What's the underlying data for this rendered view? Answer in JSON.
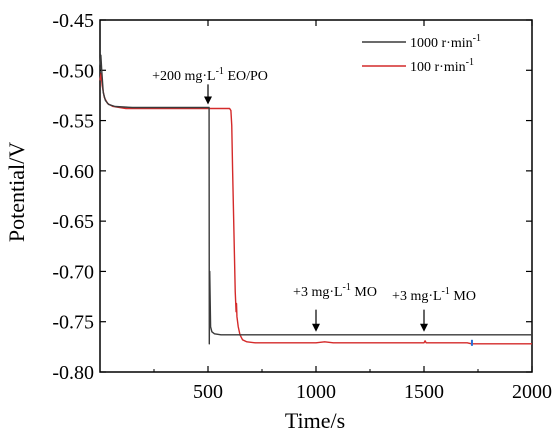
{
  "chart_data": {
    "type": "line",
    "xlabel": "Time/s",
    "ylabel": "Potential/V",
    "xlim": [
      0,
      2000
    ],
    "ylim": [
      -0.8,
      -0.45
    ],
    "x_ticks": [
      500,
      1000,
      1500,
      2000
    ],
    "x_tick_labels": [
      "500",
      "1000",
      "1500",
      "2000"
    ],
    "y_ticks": [
      -0.45,
      -0.5,
      -0.55,
      -0.6,
      -0.65,
      -0.7,
      -0.75,
      -0.8
    ],
    "y_tick_labels": [
      "-0.45",
      "-0.50",
      "-0.55",
      "-0.60",
      "-0.65",
      "-0.70",
      "-0.75",
      "-0.80"
    ],
    "grid": false,
    "legend_position": "top-right",
    "series": [
      {
        "name": "1000 r·min-1",
        "label": {
          "main": "1000 r·min",
          "sup": "-1"
        },
        "color": "#3a3a3a",
        "points": [
          [
            0,
            -0.495
          ],
          [
            4,
            -0.485
          ],
          [
            8,
            -0.5
          ],
          [
            15,
            -0.522
          ],
          [
            25,
            -0.53
          ],
          [
            40,
            -0.534
          ],
          [
            70,
            -0.536
          ],
          [
            150,
            -0.537
          ],
          [
            300,
            -0.537
          ],
          [
            450,
            -0.537
          ],
          [
            505,
            -0.537
          ],
          [
            506,
            -0.772
          ],
          [
            508,
            -0.7
          ],
          [
            512,
            -0.755
          ],
          [
            518,
            -0.76
          ],
          [
            530,
            -0.762
          ],
          [
            560,
            -0.763
          ],
          [
            800,
            -0.763
          ],
          [
            1200,
            -0.763
          ],
          [
            1600,
            -0.763
          ],
          [
            2000,
            -0.763
          ]
        ]
      },
      {
        "name": "100 r·min-1",
        "label": {
          "main": "100 r·min",
          "sup": "-1"
        },
        "color": "#d42a2a",
        "points": [
          [
            0,
            -0.51
          ],
          [
            5,
            -0.503
          ],
          [
            10,
            -0.515
          ],
          [
            20,
            -0.527
          ],
          [
            35,
            -0.533
          ],
          [
            60,
            -0.536
          ],
          [
            120,
            -0.538
          ],
          [
            300,
            -0.538
          ],
          [
            500,
            -0.538
          ],
          [
            600,
            -0.538
          ],
          [
            606,
            -0.54
          ],
          [
            610,
            -0.555
          ],
          [
            614,
            -0.6
          ],
          [
            620,
            -0.66
          ],
          [
            626,
            -0.72
          ],
          [
            630,
            -0.74
          ],
          [
            632,
            -0.732
          ],
          [
            634,
            -0.745
          ],
          [
            640,
            -0.755
          ],
          [
            648,
            -0.763
          ],
          [
            660,
            -0.768
          ],
          [
            680,
            -0.77
          ],
          [
            720,
            -0.771
          ],
          [
            800,
            -0.771
          ],
          [
            1000,
            -0.771
          ],
          [
            1040,
            -0.77
          ],
          [
            1080,
            -0.771
          ],
          [
            1300,
            -0.771
          ],
          [
            1500,
            -0.771
          ],
          [
            1505,
            -0.769
          ],
          [
            1510,
            -0.771
          ],
          [
            1700,
            -0.771
          ],
          [
            1720,
            -0.772
          ],
          [
            1800,
            -0.772
          ],
          [
            2000,
            -0.772
          ]
        ]
      }
    ],
    "annotations": [
      {
        "text": {
          "pre": "+200 mg·L",
          "sup": "-1",
          "post": " EO/PO"
        },
        "x": 1,
        "arrow_x": 500,
        "arrow_y_from": -0.514,
        "arrow_y_to": -0.534
      },
      {
        "text": {
          "pre": "+3 mg·L",
          "sup": "-1",
          "post": " MO"
        },
        "x": 1,
        "arrow_x": 1000,
        "arrow_y_from": -0.738,
        "arrow_y_to": -0.76
      },
      {
        "text": {
          "pre": "+3 mg·L",
          "sup": "-1",
          "post": " MO"
        },
        "x": 1,
        "arrow_x": 1500,
        "arrow_y_from": -0.738,
        "arrow_y_to": -0.76
      }
    ]
  }
}
